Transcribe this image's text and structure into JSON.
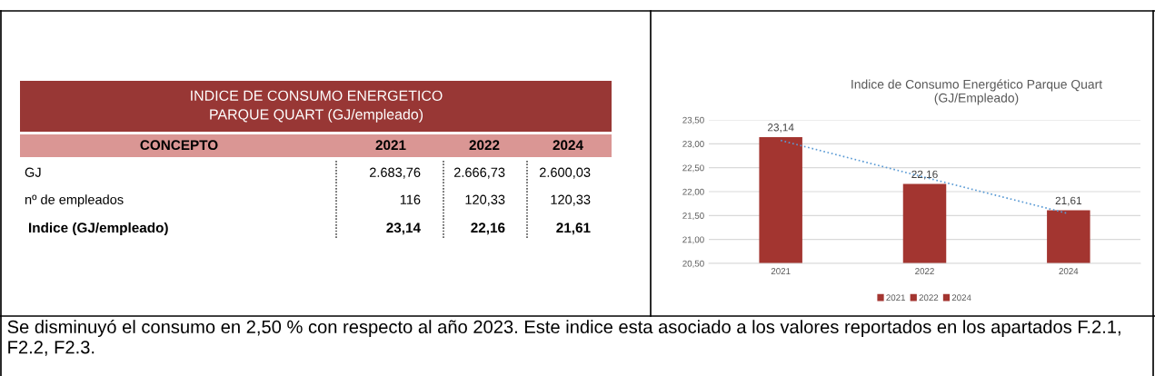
{
  "chart_data": [
    {
      "type": "other",
      "title": "INDICE DE CONSUMO ENERGETICO\nPARQUE QUART (GJ/empleado)",
      "annotations": [
        "CONCEPTO",
        "2021",
        "2022",
        "2024",
        "GJ",
        "2.683,76",
        "2.666,73",
        "2.600,03",
        "nº de empleados",
        "116",
        "120,33",
        "120,33",
        "Indice (GJ/empleado)",
        "23,14",
        "22,16",
        "21,61"
      ]
    },
    {
      "type": "bar",
      "title": "Indice de Consumo Energético Parque Quart\n(GJ/Empleado)",
      "categories": [
        "2021",
        "2022",
        "2024"
      ],
      "series": [
        {
          "name": "2021",
          "color": "#a33530",
          "values": [
            23.14,
            null,
            null
          ],
          "value_labels": [
            "23,14",
            null,
            null
          ]
        },
        {
          "name": "2022",
          "color": "#a33530",
          "values": [
            null,
            22.16,
            null
          ],
          "value_labels": [
            null,
            "22,16",
            null
          ]
        },
        {
          "name": "2024",
          "color": "#a33530",
          "values": [
            null,
            null,
            21.61
          ],
          "value_labels": [
            null,
            null,
            "21,61"
          ]
        },
        {
          "type": "line",
          "color": "#5b9bd5",
          "values": [
            23.07,
            22.3,
            21.54
          ],
          "line_style": "dotted",
          "marker": "none"
        }
      ],
      "ylim": [
        20.5,
        23.5
      ],
      "yticks": [
        {
          "value": 20.5,
          "label": "20,50"
        },
        {
          "value": 21.0,
          "label": "21,00"
        },
        {
          "value": 21.5,
          "label": "21,50"
        },
        {
          "value": 22.0,
          "label": "22,00"
        },
        {
          "value": 22.5,
          "label": "22,50"
        },
        {
          "value": 23.0,
          "label": "23,00"
        },
        {
          "value": 23.5,
          "label": "23,50"
        }
      ],
      "grid": "y",
      "legend": "bottom"
    },
    {
      "type": "other",
      "annotations": [
        "Se disminuyó el consumo en 2,50 % con respecto al año 2023. Este indice esta asociado a los valores reportados en los apartados F.2.1, F2.2, F2.3."
      ]
    }
  ]
}
